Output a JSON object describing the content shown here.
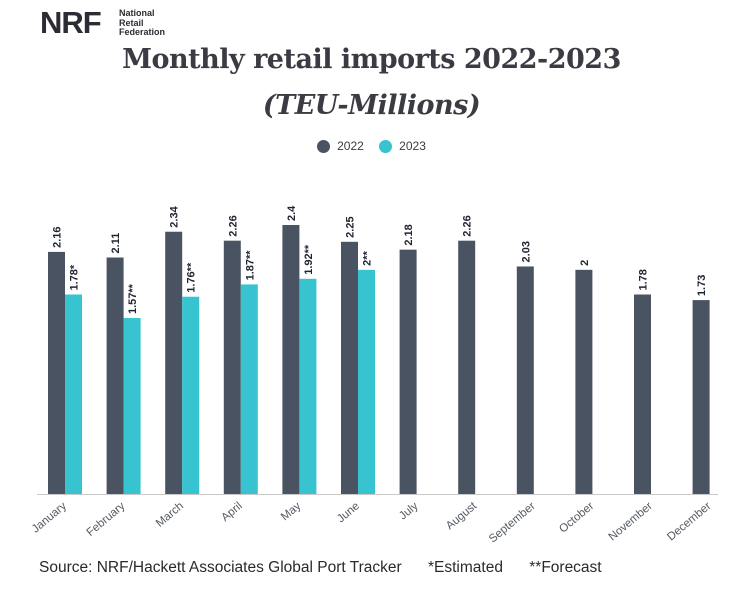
{
  "logo": {
    "mark": "NRF",
    "lines": [
      "National",
      "Retail",
      "Federation"
    ]
  },
  "chart_data": {
    "type": "bar",
    "title": "Monthly retail imports 2022-2023",
    "subtitle": "(TEU-Millions)",
    "categories": [
      "January",
      "February",
      "March",
      "April",
      "May",
      "June",
      "July",
      "August",
      "September",
      "October",
      "November",
      "December"
    ],
    "series": [
      {
        "name": "2022",
        "color": "#4a5362",
        "values": [
          2.16,
          2.11,
          2.34,
          2.26,
          2.4,
          2.25,
          2.18,
          2.26,
          2.03,
          2,
          1.78,
          1.73
        ],
        "labels": [
          "2.16",
          "2.11",
          "2.34",
          "2.26",
          "2.4",
          "2.25",
          "2.18",
          "2.26",
          "2.03",
          "2",
          "1.78",
          "1.73"
        ]
      },
      {
        "name": "2023",
        "color": "#37c3d0",
        "values": [
          1.78,
          1.57,
          1.76,
          1.87,
          1.92,
          2,
          null,
          null,
          null,
          null,
          null,
          null
        ],
        "labels": [
          "1.78*",
          "1.57**",
          "1.76**",
          "1.87**",
          "1.92**",
          "2**",
          null,
          null,
          null,
          null,
          null,
          null
        ]
      }
    ],
    "ylim": [
      0,
      2.4
    ],
    "grid": false,
    "legend_position": "top-center"
  },
  "footer": {
    "source": "Source: NRF/Hackett Associates Global Port Tracker",
    "estimated": "*Estimated",
    "forecast": "**Forecast"
  }
}
